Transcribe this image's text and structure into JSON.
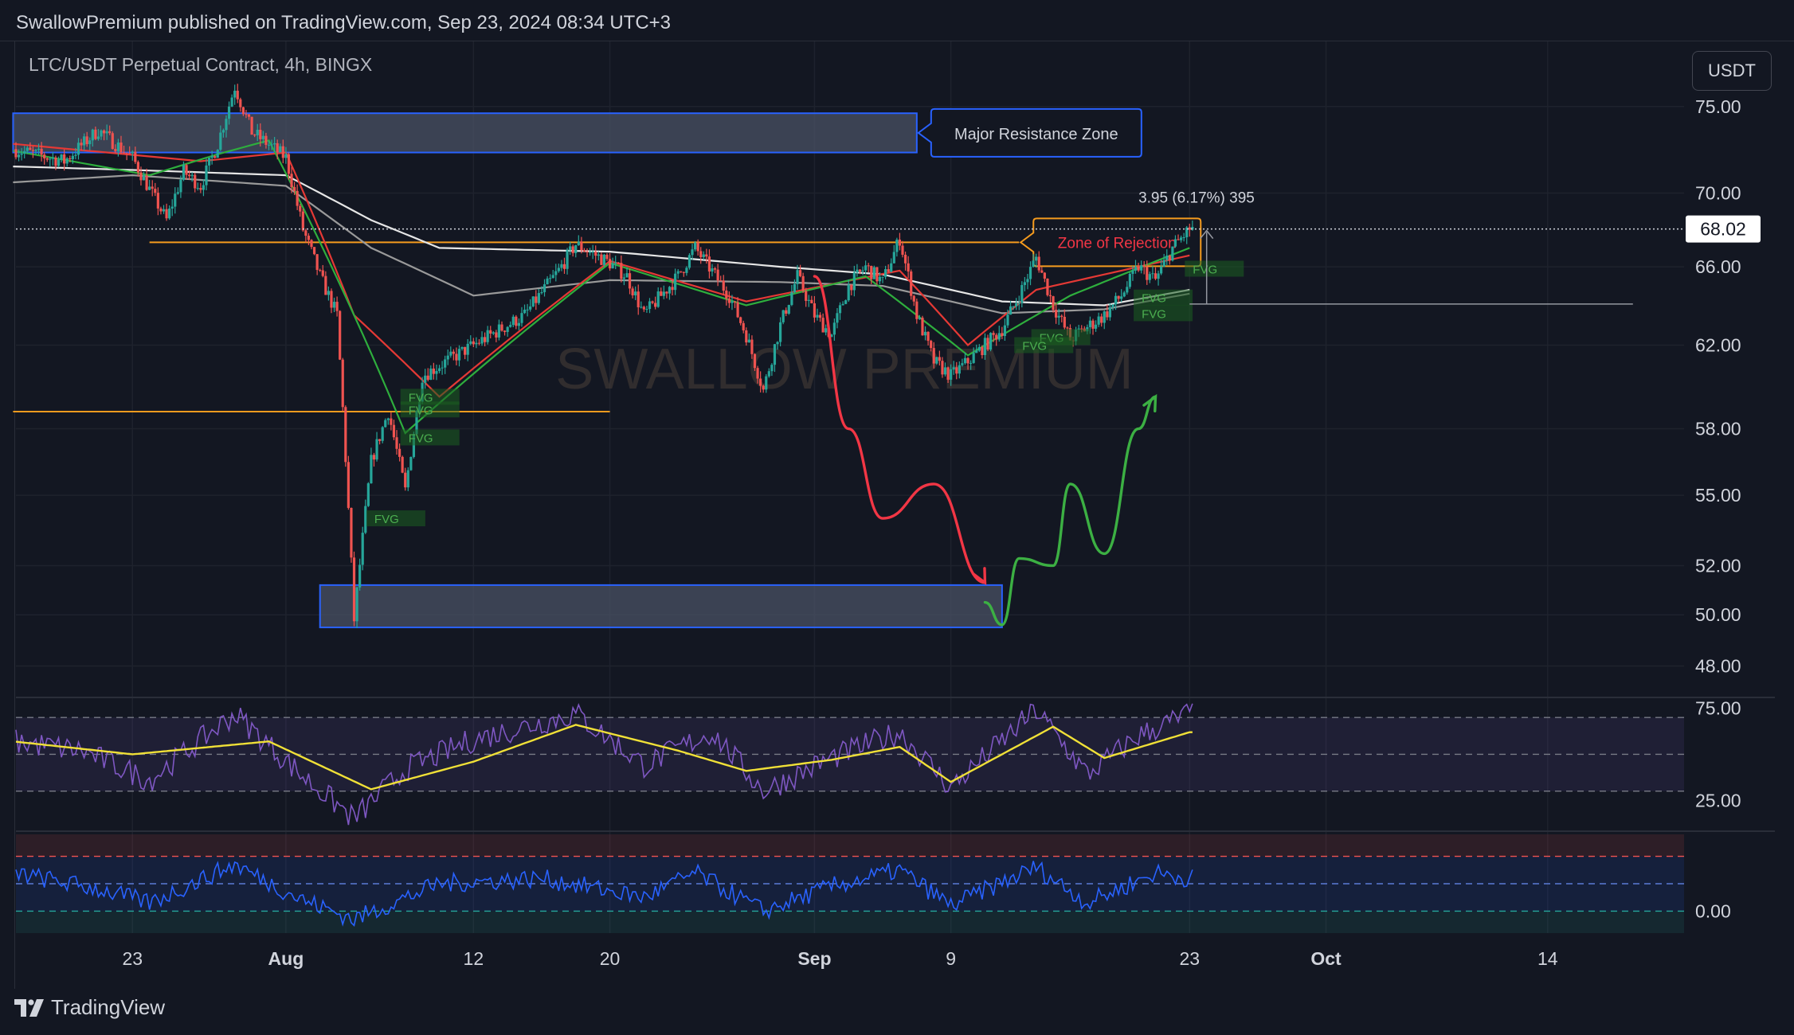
{
  "header": {
    "published_text": "SwallowPremium published on TradingView.com, Sep 23, 2024 08:34 UTC+3"
  },
  "chart_header": {
    "symbol_text": "LTC/USDT Perpetual Contract, 4h, BINGX",
    "currency_label": "USDT"
  },
  "watermark": "SWALLOW PREMIUM",
  "footer": {
    "brand": "TradingView"
  },
  "colors": {
    "background": "#131722",
    "grid": "#1e222d",
    "up": "#26a69a",
    "down": "#ef5350",
    "zone_fill": "#4a5264",
    "zone_border": "#2962ff",
    "orange": "#f59b1e",
    "ma_white": "#e6e6e6",
    "ma_gray": "#9a9a9a",
    "ma_red": "#e53935",
    "ma_green": "#2eae3d",
    "rsi_line": "#7e57c2",
    "rsi_ma": "#f0e037",
    "osc_line": "#2962ff"
  },
  "chart_data": [
    {
      "type": "candlestick",
      "title": "LTC/USDT Perpetual Contract, 4h, BINGX",
      "y_axis": {
        "ticks": [
          "75.00",
          "70.00",
          "66.00",
          "62.00",
          "58.00",
          "55.00",
          "52.00",
          "50.00",
          "48.00"
        ],
        "tick_values": [
          75,
          70,
          66,
          62,
          58,
          55,
          52,
          50,
          48
        ],
        "scale": "log",
        "range": [
          46.9,
          79.0
        ]
      },
      "x_axis": {
        "ticks": [
          "23",
          "Aug",
          "12",
          "20",
          "Sep",
          "9",
          "23",
          "Oct",
          "14"
        ],
        "tick_dates": [
          "2024-07-23",
          "2024-08-01",
          "2024-08-12",
          "2024-08-20",
          "2024-09-01",
          "2024-09-09",
          "2024-09-23",
          "2024-10-01",
          "2024-10-14"
        ],
        "range": [
          "2024-07-16T04:00",
          "2024-10-22"
        ]
      },
      "current_price": {
        "label": "68.02",
        "value": 68.02
      },
      "measure": {
        "label": "3.95 (6.17%) 395",
        "from": 64.07,
        "to": 68.02
      },
      "ohlc_path": [
        [
          "2024-07-16",
          72.5
        ],
        [
          "2024-07-19",
          71.8
        ],
        [
          "2024-07-21",
          73.6
        ],
        [
          "2024-07-23",
          72.0
        ],
        [
          "2024-07-24",
          70.2
        ],
        [
          "2024-07-25",
          68.5
        ],
        [
          "2024-07-26",
          71.2
        ],
        [
          "2024-07-27",
          70.4
        ],
        [
          "2024-07-28",
          72.8
        ],
        [
          "2024-07-29",
          76.2
        ],
        [
          "2024-07-30",
          73.5
        ],
        [
          "2024-08-01",
          72.0
        ],
        [
          "2024-08-02",
          68.0
        ],
        [
          "2024-08-03",
          65.5
        ],
        [
          "2024-08-04",
          63.5
        ],
        [
          "2024-08-05",
          49.8
        ],
        [
          "2024-08-06",
          56.5
        ],
        [
          "2024-08-07",
          58.8
        ],
        [
          "2024-08-08",
          55.2
        ],
        [
          "2024-08-09",
          60.5
        ],
        [
          "2024-08-11",
          61.5
        ],
        [
          "2024-08-13",
          62.5
        ],
        [
          "2024-08-15",
          63.5
        ],
        [
          "2024-08-17",
          65.8
        ],
        [
          "2024-08-18",
          67.2
        ],
        [
          "2024-08-20",
          66.2
        ],
        [
          "2024-08-21",
          65.5
        ],
        [
          "2024-08-22",
          63.5
        ],
        [
          "2024-08-24",
          65.5
        ],
        [
          "2024-08-25",
          67.0
        ],
        [
          "2024-08-27",
          64.5
        ],
        [
          "2024-08-28",
          62.5
        ],
        [
          "2024-08-29",
          59.8
        ],
        [
          "2024-08-30",
          63.0
        ],
        [
          "2024-08-31",
          65.5
        ],
        [
          "2024-09-01",
          63.5
        ],
        [
          "2024-09-02",
          62.5
        ],
        [
          "2024-09-03",
          65.0
        ],
        [
          "2024-09-04",
          66.0
        ],
        [
          "2024-09-05",
          65.2
        ],
        [
          "2024-09-06",
          67.5
        ],
        [
          "2024-09-07",
          63.5
        ],
        [
          "2024-09-08",
          61.2
        ],
        [
          "2024-09-09",
          60.5
        ],
        [
          "2024-09-10",
          61.2
        ],
        [
          "2024-09-12",
          62.8
        ],
        [
          "2024-09-13",
          64.5
        ],
        [
          "2024-09-14",
          66.5
        ],
        [
          "2024-09-15",
          64.0
        ],
        [
          "2024-09-16",
          62.3
        ],
        [
          "2024-09-18",
          63.5
        ],
        [
          "2024-09-19",
          64.5
        ],
        [
          "2024-09-20",
          66.0
        ],
        [
          "2024-09-21",
          65.3
        ],
        [
          "2024-09-22",
          67.0
        ],
        [
          "2024-09-23",
          68.02
        ]
      ],
      "moving_averages": [
        {
          "color": "#e6e6e6",
          "points": [
            [
              "2024-07-16",
              71.5
            ],
            [
              "2024-07-23",
              71.3
            ],
            [
              "2024-08-01",
              71.0
            ],
            [
              "2024-08-06",
              68.5
            ],
            [
              "2024-08-10",
              67.0
            ],
            [
              "2024-08-20",
              66.8
            ],
            [
              "2024-08-30",
              66.0
            ],
            [
              "2024-09-05",
              65.6
            ],
            [
              "2024-09-12",
              64.2
            ],
            [
              "2024-09-18",
              64.0
            ],
            [
              "2024-09-23",
              64.8
            ]
          ]
        },
        {
          "color": "#9a9a9a",
          "points": [
            [
              "2024-07-16",
              70.6
            ],
            [
              "2024-07-23",
              71.0
            ],
            [
              "2024-08-01",
              70.4
            ],
            [
              "2024-08-06",
              67.0
            ],
            [
              "2024-08-12",
              64.5
            ],
            [
              "2024-08-20",
              65.3
            ],
            [
              "2024-08-30",
              65.2
            ],
            [
              "2024-09-05",
              65.0
            ],
            [
              "2024-09-12",
              63.6
            ],
            [
              "2024-09-18",
              63.8
            ],
            [
              "2024-09-23",
              64.6
            ]
          ]
        },
        {
          "color": "#e53935",
          "points": [
            [
              "2024-07-16",
              72.8
            ],
            [
              "2024-07-27",
              71.8
            ],
            [
              "2024-08-01",
              72.3
            ],
            [
              "2024-08-05",
              63.5
            ],
            [
              "2024-08-10",
              59.5
            ],
            [
              "2024-08-20",
              66.3
            ],
            [
              "2024-08-28",
              64.2
            ],
            [
              "2024-09-06",
              65.8
            ],
            [
              "2024-09-10",
              62.0
            ],
            [
              "2024-09-14",
              64.8
            ],
            [
              "2024-09-23",
              66.6
            ]
          ]
        },
        {
          "color": "#2eae3d",
          "points": [
            [
              "2024-07-16",
              72.4
            ],
            [
              "2024-07-24",
              71.0
            ],
            [
              "2024-07-28",
              72.2
            ],
            [
              "2024-07-31",
              73.0
            ],
            [
              "2024-08-08",
              57.8
            ],
            [
              "2024-08-14",
              62.0
            ],
            [
              "2024-08-20",
              66.2
            ],
            [
              "2024-08-28",
              64.0
            ],
            [
              "2024-09-04",
              65.5
            ],
            [
              "2024-09-10",
              61.5
            ],
            [
              "2024-09-16",
              64.5
            ],
            [
              "2024-09-23",
              67.0
            ]
          ]
        }
      ],
      "zones": [
        {
          "label": "Major Resistance Zone",
          "low": 72.3,
          "high": 74.6,
          "from": "2024-07-16",
          "to": "2024-09-07"
        },
        {
          "label": "",
          "low": 49.5,
          "high": 51.2,
          "from": "2024-08-03",
          "to": "2024-09-12"
        }
      ],
      "levels": [
        {
          "label": "Zone of Rejection",
          "value": 67.3,
          "from": "2024-07-24",
          "to": "2024-09-13"
        },
        {
          "label": "",
          "value": 58.8,
          "from": "2024-07-16",
          "to": "2024-08-20"
        }
      ],
      "fvg_labels": [
        {
          "label": "FVG",
          "date": "2024-08-08",
          "value": 59.5
        },
        {
          "label": "FVG",
          "date": "2024-08-08",
          "value": 58.9
        },
        {
          "label": "FVG",
          "date": "2024-08-08",
          "value": 57.6
        },
        {
          "label": "FVG",
          "date": "2024-08-06",
          "value": 54.0
        },
        {
          "label": "FVG",
          "date": "2024-09-14",
          "value": 62.4
        },
        {
          "label": "FVG",
          "date": "2024-09-13",
          "value": 62.0
        },
        {
          "label": "FVG",
          "date": "2024-09-23",
          "value": 65.9
        },
        {
          "label": "FVG",
          "date": "2024-09-20",
          "value": 64.4
        },
        {
          "label": "FVG",
          "date": "2024-09-20",
          "value": 63.6
        }
      ],
      "projections": [
        {
          "color": "#f23645",
          "points": [
            [
              "2024-09-01",
              65.5
            ],
            [
              "2024-09-03",
              58.0
            ],
            [
              "2024-09-05",
              54.0
            ],
            [
              "2024-09-08",
              55.5
            ],
            [
              "2024-09-11",
              51.3
            ]
          ]
        },
        {
          "color": "#3cb043",
          "points": [
            [
              "2024-09-11",
              50.5
            ],
            [
              "2024-09-12",
              49.6
            ],
            [
              "2024-09-13",
              52.3
            ],
            [
              "2024-09-15",
              52.0
            ],
            [
              "2024-09-16",
              55.5
            ],
            [
              "2024-09-18",
              52.5
            ],
            [
              "2024-09-20",
              58.0
            ],
            [
              "2024-09-21",
              59.5
            ]
          ]
        }
      ]
    },
    {
      "type": "line",
      "y_axis": {
        "ticks": [
          "75.00",
          "25.00"
        ],
        "tick_values": [
          75,
          25
        ],
        "range": [
          10,
          80
        ]
      },
      "bands": [
        70,
        50,
        30
      ],
      "series": [
        {
          "color": "#7e57c2",
          "points": [
            [
              "2024-07-16",
              57
            ],
            [
              "2024-07-20",
              52
            ],
            [
              "2024-07-24",
              36
            ],
            [
              "2024-07-29",
              72
            ],
            [
              "2024-08-02",
              38
            ],
            [
              "2024-08-05",
              15
            ],
            [
              "2024-08-08",
              42
            ],
            [
              "2024-08-12",
              58
            ],
            [
              "2024-08-18",
              72
            ],
            [
              "2024-08-22",
              44
            ],
            [
              "2024-08-26",
              62
            ],
            [
              "2024-08-29",
              30
            ],
            [
              "2024-09-02",
              48
            ],
            [
              "2024-09-06",
              62
            ],
            [
              "2024-09-09",
              32
            ],
            [
              "2024-09-14",
              74
            ],
            [
              "2024-09-17",
              39
            ],
            [
              "2024-09-20",
              60
            ],
            [
              "2024-09-23",
              72
            ]
          ]
        },
        {
          "color": "#f0e037",
          "points": [
            [
              "2024-07-16",
              57
            ],
            [
              "2024-07-23",
              50
            ],
            [
              "2024-07-31",
              57
            ],
            [
              "2024-08-06",
              31
            ],
            [
              "2024-08-12",
              46
            ],
            [
              "2024-08-18",
              66
            ],
            [
              "2024-08-24",
              52
            ],
            [
              "2024-08-28",
              41
            ],
            [
              "2024-09-02",
              47
            ],
            [
              "2024-09-06",
              54
            ],
            [
              "2024-09-09",
              35
            ],
            [
              "2024-09-15",
              65
            ],
            [
              "2024-09-18",
              48
            ],
            [
              "2024-09-23",
              62
            ]
          ]
        }
      ]
    },
    {
      "type": "line",
      "y_axis": {
        "ticks": [
          "0.00"
        ],
        "tick_values": [
          0
        ],
        "range": [
          -0.8,
          2.8
        ]
      },
      "bands": [
        2,
        1,
        0
      ],
      "series": [
        {
          "color": "#2962ff",
          "points": [
            [
              "2024-07-16",
              1.4
            ],
            [
              "2024-07-21",
              0.8
            ],
            [
              "2024-07-24",
              0.3
            ],
            [
              "2024-07-29",
              1.7
            ],
            [
              "2024-08-02",
              0.4
            ],
            [
              "2024-08-05",
              -0.3
            ],
            [
              "2024-08-10",
              1.0
            ],
            [
              "2024-08-16",
              1.2
            ],
            [
              "2024-08-22",
              0.5
            ],
            [
              "2024-08-25",
              1.4
            ],
            [
              "2024-08-29",
              0.0
            ],
            [
              "2024-09-02",
              0.9
            ],
            [
              "2024-09-06",
              1.5
            ],
            [
              "2024-09-09",
              0.2
            ],
            [
              "2024-09-14",
              1.6
            ],
            [
              "2024-09-17",
              0.3
            ],
            [
              "2024-09-21",
              1.4
            ],
            [
              "2024-09-23",
              1.2
            ]
          ]
        }
      ]
    }
  ]
}
